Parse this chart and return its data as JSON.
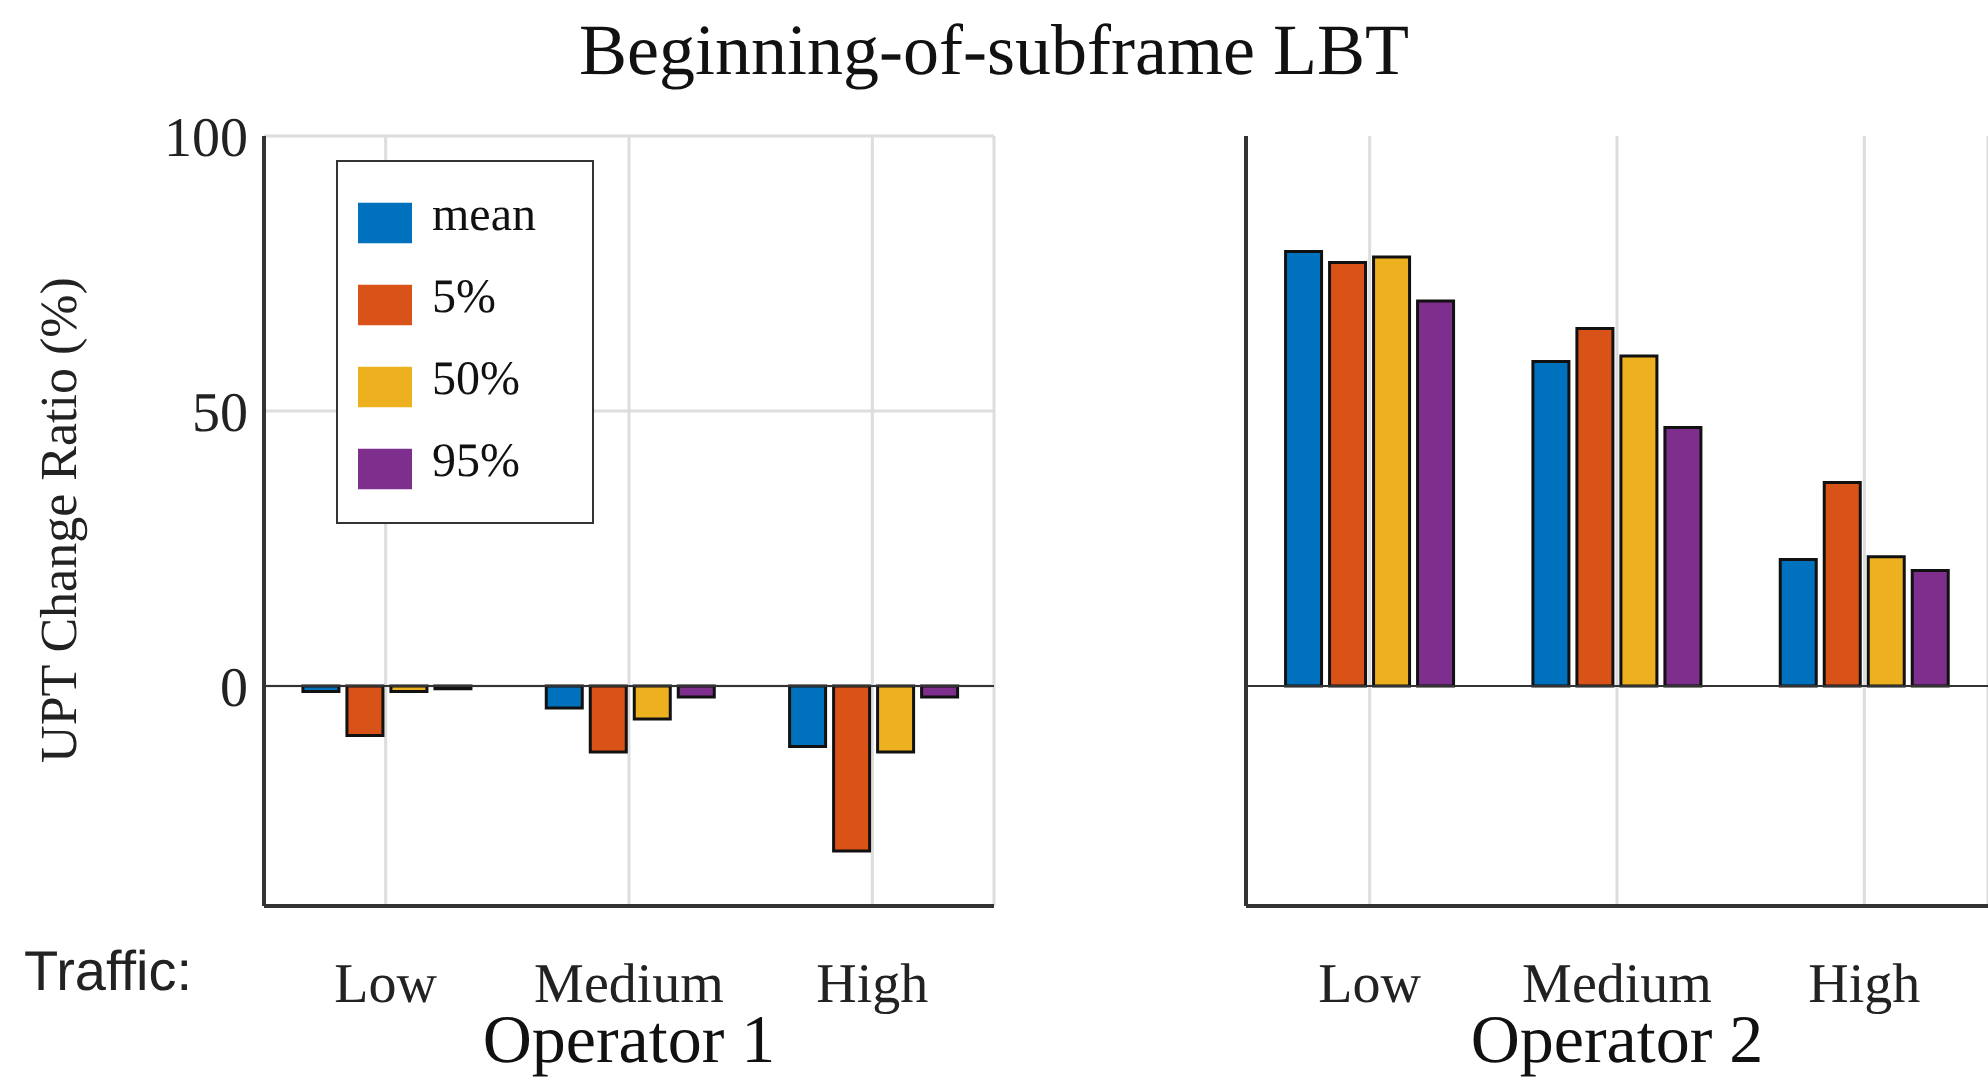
{
  "chart_data": [
    {
      "type": "bar",
      "title": "Beginning-of-subframe LBT",
      "xlabel": "Operator 1",
      "ylabel": "UPT Change Ratio (%)",
      "annotations": [
        "Traffic:"
      ],
      "categories": [
        "Low",
        "Medium",
        "High"
      ],
      "series": [
        {
          "name": "mean",
          "color": "#0072bd",
          "values": [
            -1,
            -4,
            -11
          ]
        },
        {
          "name": "5%",
          "color": "#d95319",
          "values": [
            -9,
            -12,
            -30
          ]
        },
        {
          "name": "50%",
          "color": "#edb120",
          "values": [
            -1,
            -6,
            -12
          ]
        },
        {
          "name": "95%",
          "color": "#7e2f8e",
          "values": [
            -0.5,
            -2,
            -2
          ]
        }
      ],
      "ylim": [
        -40,
        100
      ],
      "yticks": [
        0,
        50,
        100
      ],
      "grid": true,
      "legend": "top left"
    },
    {
      "type": "bar",
      "xlabel": "Operator 2",
      "categories": [
        "Low",
        "Medium",
        "High"
      ],
      "series": [
        {
          "color": "#0072bd",
          "values": [
            79,
            59,
            23
          ]
        },
        {
          "color": "#d95319",
          "values": [
            77,
            65,
            37
          ]
        },
        {
          "color": "#edb120",
          "values": [
            78,
            60,
            23.5
          ]
        },
        {
          "color": "#7e2f8e",
          "values": [
            70,
            47,
            21
          ]
        }
      ],
      "ylim": [
        -40,
        100
      ],
      "yticks": [
        0,
        50,
        100
      ],
      "grid": true,
      "tick_labels": "x"
    }
  ]
}
